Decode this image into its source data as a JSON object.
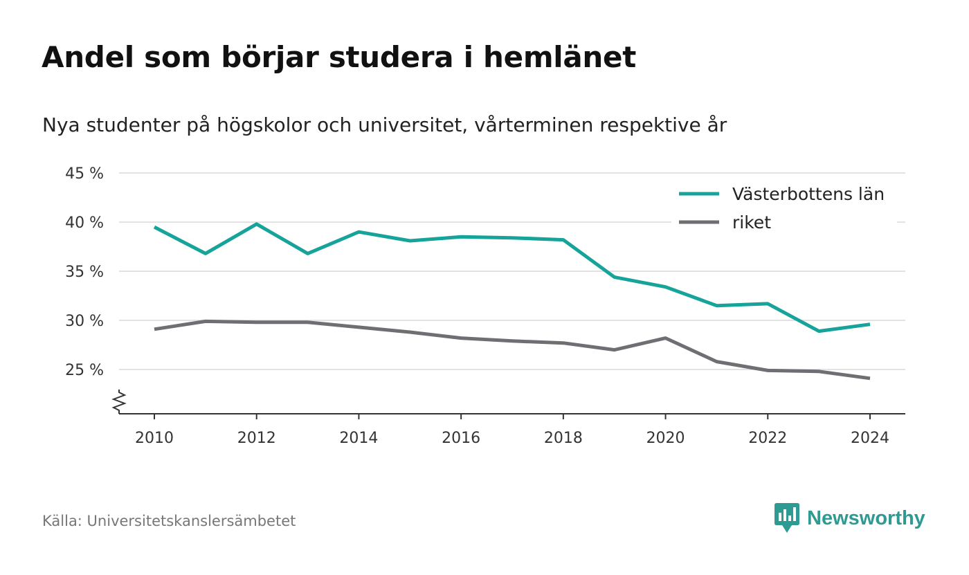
{
  "header": {
    "title": "Andel som börjar studera i hemlänet",
    "subtitle": "Nya studenter på högskolor och universitet, vårterminen respektive år"
  },
  "footer": {
    "source": "Källa: Universitetskanslersämbetet",
    "brand": "Newsworthy",
    "brand_logo_icon": "newsworthy-logo-icon",
    "brand_color": "#2e9a92"
  },
  "chart_data": {
    "type": "line",
    "title": "Andel som börjar studera i hemlänet",
    "subtitle": "Nya studenter på högskolor och universitet, vårterminen respektive år",
    "x": [
      2010,
      2011,
      2012,
      2013,
      2014,
      2015,
      2016,
      2017,
      2018,
      2019,
      2020,
      2021,
      2022,
      2023,
      2024
    ],
    "series": [
      {
        "name": "Västerbottens län",
        "color": "#16a39a",
        "values": [
          39.5,
          36.8,
          39.8,
          36.8,
          39.0,
          38.1,
          38.5,
          38.4,
          38.2,
          34.4,
          33.4,
          31.5,
          31.7,
          28.9,
          29.6
        ]
      },
      {
        "name": "riket",
        "color": "#6f6f73",
        "values": [
          29.1,
          29.9,
          29.8,
          29.8,
          29.3,
          28.8,
          28.2,
          27.9,
          27.7,
          27.0,
          28.2,
          25.8,
          24.9,
          24.8,
          24.1
        ]
      }
    ],
    "ylim": [
      20.5,
      45
    ],
    "yticks": [
      25,
      30,
      35,
      40,
      45
    ],
    "ytick_labels": [
      "25 %",
      "30 %",
      "35 %",
      "40 %",
      "45 %"
    ],
    "xticks": [
      2010,
      2012,
      2014,
      2016,
      2018,
      2020,
      2022,
      2024
    ],
    "xtick_labels": [
      "2010",
      "2012",
      "2014",
      "2016",
      "2018",
      "2020",
      "2022",
      "2024"
    ],
    "xlabel": "",
    "ylabel": "",
    "grid": true,
    "y_axis_break": true,
    "legend": "top-right"
  }
}
